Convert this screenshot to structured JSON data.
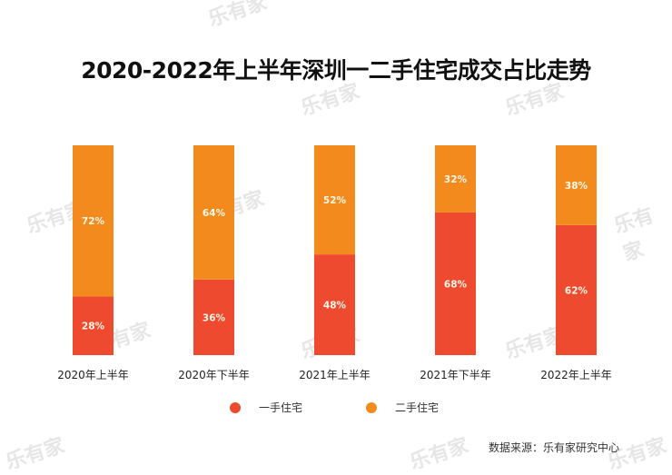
{
  "watermark": "乐有家",
  "chart_data": {
    "type": "bar",
    "stacked": true,
    "title": "2020-2022年上半年深圳一二手住宅成交占比走势",
    "categories": [
      "2020年上半年",
      "2020年下半年",
      "2021年上半年",
      "2021年下半年",
      "2022年上半年"
    ],
    "series": [
      {
        "name": "一手住宅",
        "color": "#ee4a2f",
        "values": [
          28,
          36,
          48,
          68,
          62
        ],
        "labels": [
          "28%",
          "36%",
          "48%",
          "68%",
          "62%"
        ]
      },
      {
        "name": "二手住宅",
        "color": "#f28a1e",
        "values": [
          72,
          64,
          52,
          32,
          38
        ],
        "labels": [
          "72%",
          "64%",
          "52%",
          "32%",
          "38%"
        ]
      }
    ],
    "ylim": [
      0,
      100
    ],
    "xlabel": "",
    "ylabel": "",
    "grid": false,
    "legend": "bottom",
    "source": "数据来源：乐有家研究中心"
  }
}
